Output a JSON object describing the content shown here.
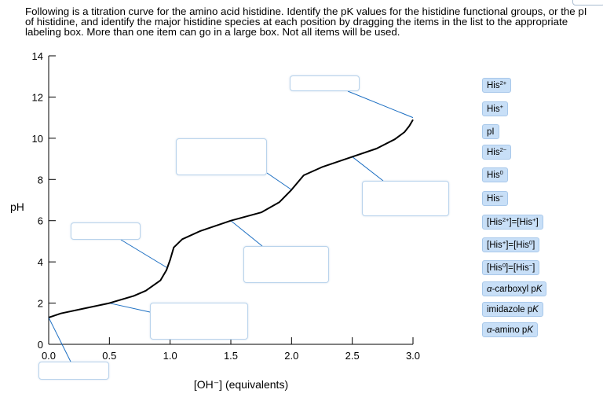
{
  "instructions": "Following is a titration curve for the amino acid histidine. Identify the pK values for the histidine functional groups, or the pI of histidine, and identify the major histidine species at each position by dragging the items in the list to the appropriate labeling box. More than one item can go in a large box. Not all items will be used.",
  "chart_data": {
    "type": "line",
    "xlabel": "[OH⁻] (equivalents)",
    "ylabel": "pH",
    "xlim": [
      0,
      3
    ],
    "ylim": [
      0,
      14
    ],
    "x_ticks": [
      "0.0",
      "0.5",
      "1.0",
      "1.5",
      "2.0",
      "2.5",
      "3.0"
    ],
    "y_ticks": [
      "0",
      "2",
      "4",
      "6",
      "8",
      "10",
      "12",
      "14"
    ],
    "x_tick_values": [
      0,
      0.5,
      1,
      1.5,
      2,
      2.5,
      3
    ],
    "y_tick_values": [
      0,
      2,
      4,
      6,
      8,
      10,
      12,
      14
    ],
    "series": [
      {
        "x": [
          0.0,
          0.1,
          0.3,
          0.5,
          0.7,
          0.8,
          0.92,
          0.97,
          1.0,
          1.03,
          1.1,
          1.25,
          1.5,
          1.75,
          1.9,
          2.0,
          2.1,
          2.25,
          2.5,
          2.7,
          2.85,
          2.93,
          2.97,
          3.0
        ],
        "y": [
          1.3,
          1.5,
          1.75,
          2.0,
          2.35,
          2.6,
          3.1,
          3.6,
          4.1,
          4.7,
          5.1,
          5.5,
          6.0,
          6.4,
          6.9,
          7.5,
          8.2,
          8.6,
          9.1,
          9.5,
          9.95,
          10.3,
          10.6,
          10.9
        ]
      }
    ]
  },
  "connector_color": "#1b6ec2",
  "drop_boxes": [
    {
      "id": "box-start",
      "connect_to": [
        0.0,
        1.3
      ]
    },
    {
      "id": "box-pk1",
      "connect_to": [
        0.5,
        2.0
      ]
    },
    {
      "id": "box-pi",
      "connect_to": [
        0.98,
        3.7
      ]
    },
    {
      "id": "box-mid",
      "connect_to": [
        1.5,
        6.0
      ]
    },
    {
      "id": "box-pk3",
      "connect_to": [
        2.0,
        7.5
      ]
    },
    {
      "id": "box-pk4",
      "connect_to": [
        2.5,
        9.1
      ]
    },
    {
      "id": "box-end",
      "connect_to": [
        3.0,
        11.0
      ]
    }
  ],
  "tiles": [
    {
      "base": "His",
      "sup": "2+",
      "text": "His2+"
    },
    {
      "base": "His",
      "sup": "+",
      "text": "His+"
    },
    {
      "base": "pI",
      "sup": "",
      "text": "pI"
    },
    {
      "base": "His",
      "sup": "2−",
      "text": "His2−"
    },
    {
      "base": "His",
      "sup": "0",
      "text": "His0"
    },
    {
      "base": "His",
      "sup": "−",
      "text": "His−"
    },
    {
      "base": "",
      "sup": "",
      "text": "[His2+]=[His+]"
    },
    {
      "base": "",
      "sup": "",
      "text": "[His+]=[His0]"
    },
    {
      "base": "",
      "sup": "",
      "text": "[His0]=[His−]"
    },
    {
      "base": "",
      "sup": "",
      "text": "α-carboxyl pK"
    },
    {
      "base": "",
      "sup": "",
      "text": "imidazole pK"
    },
    {
      "base": "",
      "sup": "",
      "text": "α-amino pK"
    }
  ]
}
